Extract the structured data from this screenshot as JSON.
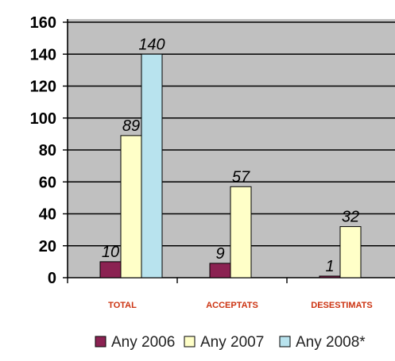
{
  "chart_data": {
    "type": "bar",
    "categories": [
      "TOTAL",
      "ACCEPTATS",
      "DESESTIMATS"
    ],
    "series": [
      {
        "name": "Any 2006",
        "values": [
          10,
          9,
          1
        ],
        "color": "#8b2252"
      },
      {
        "name": "Any 2007",
        "values": [
          89,
          57,
          32
        ],
        "color": "#ffffc8"
      },
      {
        "name": "Any 2008*",
        "values": [
          140,
          null,
          null
        ],
        "color": "#b8e3ee"
      }
    ],
    "data_labels": [
      [
        "10",
        "9",
        "1"
      ],
      [
        "89",
        "57",
        "32"
      ],
      [
        "140",
        "",
        ""
      ]
    ],
    "y_ticks": [
      "0",
      "20",
      "40",
      "60",
      "80",
      "100",
      "120",
      "140",
      "160"
    ],
    "ylim": [
      0,
      160
    ],
    "grid": true,
    "legend_position": "bottom",
    "plot_background": "#c0c0c0",
    "category_label_color": "#cc3311",
    "title": "",
    "xlabel": "",
    "ylabel": ""
  }
}
